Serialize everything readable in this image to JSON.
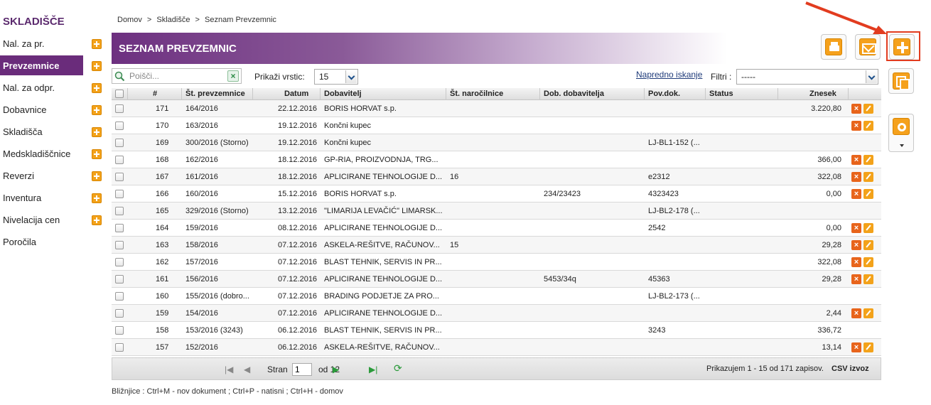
{
  "sidebar": {
    "title": "SKLADIŠČE",
    "items": [
      {
        "label": "Nal. za pr.",
        "plus": true,
        "active": false
      },
      {
        "label": "Prevzemnice",
        "plus": true,
        "active": true
      },
      {
        "label": "Nal. za odpr.",
        "plus": true,
        "active": false
      },
      {
        "label": "Dobavnice",
        "plus": true,
        "active": false
      },
      {
        "label": "Skladišča",
        "plus": true,
        "active": false
      },
      {
        "label": "Medskladiščnice",
        "plus": true,
        "active": false
      },
      {
        "label": "Reverzi",
        "plus": true,
        "active": false
      },
      {
        "label": "Inventura",
        "plus": true,
        "active": false
      },
      {
        "label": "Nivelacija cen",
        "plus": true,
        "active": false
      },
      {
        "label": "Poročila",
        "plus": false,
        "active": false
      }
    ]
  },
  "breadcrumb": [
    "Domov",
    ">",
    "Skladišče",
    ">",
    "Seznam Prevzemnic"
  ],
  "header": {
    "title": "SEZNAM PREVZEMNIC"
  },
  "toolbar": {
    "print_icon": "printer-icon",
    "mail_icon": "mail-icon",
    "add_icon": "plus-icon",
    "copy_icon": "copy-icon",
    "settings_icon": "gear-icon"
  },
  "search": {
    "placeholder": "Poišči..."
  },
  "rows_per_page": {
    "label": "Prikaži vrstic:",
    "value": "15"
  },
  "advanced_search": "Napredno iskanje",
  "filter": {
    "label": "Filtri :",
    "value": "-----"
  },
  "columns": [
    "#",
    "Št. prevzemnice",
    "Datum",
    "Dobavitelj",
    "Št. naročilnice",
    "Dob. dobavitelja",
    "Pov.dok.",
    "Status",
    "Znesek"
  ],
  "rows": [
    {
      "id": "171",
      "st": "164/2016",
      "datum": "22.12.2016",
      "dobavitelj": "BORIS HORVAT s.p.",
      "nar": "",
      "dob": "",
      "pov": "",
      "status": "",
      "znesek": "3.220,80",
      "actions": true
    },
    {
      "id": "170",
      "st": "163/2016",
      "datum": "19.12.2016",
      "dobavitelj": "Končni kupec",
      "nar": "",
      "dob": "",
      "pov": "",
      "status": "",
      "znesek": "",
      "actions": true
    },
    {
      "id": "169",
      "st": "300/2016 (Storno)",
      "datum": "19.12.2016",
      "dobavitelj": "Končni kupec",
      "nar": "",
      "dob": "",
      "pov": "LJ-BL1-152 (...",
      "status": "",
      "znesek": "",
      "actions": false
    },
    {
      "id": "168",
      "st": "162/2016",
      "datum": "18.12.2016",
      "dobavitelj": "GP-RIA, PROIZVODNJA, TRG...",
      "nar": "",
      "dob": "",
      "pov": "",
      "status": "",
      "znesek": "366,00",
      "actions": true
    },
    {
      "id": "167",
      "st": "161/2016",
      "datum": "18.12.2016",
      "dobavitelj": "APLICIRANE TEHNOLOGIJE D...",
      "nar": "16",
      "dob": "",
      "pov": "e2312",
      "status": "",
      "znesek": "322,08",
      "actions": true
    },
    {
      "id": "166",
      "st": "160/2016",
      "datum": "15.12.2016",
      "dobavitelj": "BORIS HORVAT s.p.",
      "nar": "",
      "dob": "234/23423",
      "pov": "4323423",
      "status": "",
      "znesek": "0,00",
      "actions": true
    },
    {
      "id": "165",
      "st": "329/2016 (Storno)",
      "datum": "13.12.2016",
      "dobavitelj": "\"LIMARIJA LEVAČIĆ\" LIMARSK...",
      "nar": "",
      "dob": "",
      "pov": "LJ-BL2-178 (...",
      "status": "",
      "znesek": "",
      "actions": false
    },
    {
      "id": "164",
      "st": "159/2016",
      "datum": "08.12.2016",
      "dobavitelj": "APLICIRANE TEHNOLOGIJE D...",
      "nar": "",
      "dob": "",
      "pov": "2542",
      "status": "",
      "znesek": "0,00",
      "actions": true
    },
    {
      "id": "163",
      "st": "158/2016",
      "datum": "07.12.2016",
      "dobavitelj": "ASKELA-REŠITVE, RAČUNOV...",
      "nar": "15",
      "dob": "",
      "pov": "",
      "status": "",
      "znesek": "29,28",
      "actions": true
    },
    {
      "id": "162",
      "st": "157/2016",
      "datum": "07.12.2016",
      "dobavitelj": "BLAST TEHNIK, SERVIS IN PR...",
      "nar": "",
      "dob": "",
      "pov": "",
      "status": "",
      "znesek": "322,08",
      "actions": true
    },
    {
      "id": "161",
      "st": "156/2016",
      "datum": "07.12.2016",
      "dobavitelj": "APLICIRANE TEHNOLOGIJE D...",
      "nar": "",
      "dob": "5453/34q",
      "pov": "45363",
      "status": "",
      "znesek": "29,28",
      "actions": true
    },
    {
      "id": "160",
      "st": "155/2016 (dobro...",
      "datum": "07.12.2016",
      "dobavitelj": "BRADING PODJETJE ZA PRO...",
      "nar": "",
      "dob": "",
      "pov": "LJ-BL2-173 (...",
      "status": "",
      "znesek": "",
      "actions": false
    },
    {
      "id": "159",
      "st": "154/2016",
      "datum": "07.12.2016",
      "dobavitelj": "APLICIRANE TEHNOLOGIJE D...",
      "nar": "",
      "dob": "",
      "pov": "",
      "status": "",
      "znesek": "2,44",
      "actions": true
    },
    {
      "id": "158",
      "st": "153/2016 (3243)",
      "datum": "06.12.2016",
      "dobavitelj": "BLAST TEHNIK, SERVIS IN PR...",
      "nar": "",
      "dob": "",
      "pov": "3243",
      "status": "",
      "znesek": "336,72",
      "actions": false
    },
    {
      "id": "157",
      "st": "152/2016",
      "datum": "06.12.2016",
      "dobavitelj": "ASKELA-REŠITVE, RAČUNOV...",
      "nar": "",
      "dob": "",
      "pov": "",
      "status": "",
      "znesek": "13,14",
      "actions": true
    }
  ],
  "pager": {
    "page_label": "Stran",
    "page_value": "1",
    "of_label": "od 12",
    "info": "Prikazujem 1 - 15 od 171 zapisov.",
    "csv": "CSV izvoz"
  },
  "shortcuts": "Bližnjice : Ctrl+M - nov dokument ;   Ctrl+P - natisni ;   Ctrl+H - domov",
  "colors": {
    "brand": "#6a2c7b",
    "accent": "#f3a21a",
    "highlight": "#e23c1f"
  }
}
